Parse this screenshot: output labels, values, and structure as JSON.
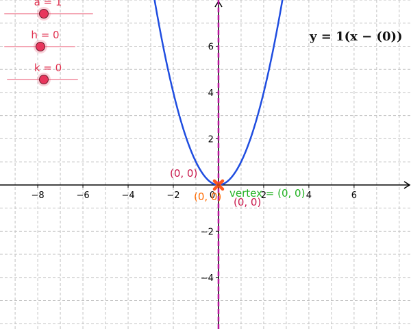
{
  "sliders": [
    {
      "label": "a = 1",
      "value": 1
    },
    {
      "label": "h = 0",
      "value": 0
    },
    {
      "label": "k = 0",
      "value": 0
    }
  ],
  "equation": "y = 1(x − (0))",
  "axes": {
    "xlim": [
      -9.67,
      8.52
    ],
    "ylim": [
      -6.23,
      8.0
    ],
    "x_ticks": [
      -8,
      -6,
      -4,
      -2,
      0,
      2,
      4,
      6
    ],
    "x_tick_labels": [
      "−8",
      "−6",
      "−4",
      "−2",
      "0",
      "2",
      "4",
      "6"
    ],
    "y_ticks": [
      -4,
      -2,
      2,
      4,
      6
    ],
    "y_tick_labels": [
      "−4",
      "−2",
      "2",
      "4",
      "6"
    ],
    "grid": true
  },
  "curve": {
    "a": 1,
    "h": 0,
    "k": 0,
    "color": "#1f4de0"
  },
  "axis_of_symmetry": {
    "x": 0,
    "color": "#b5129a"
  },
  "vertex_point": {
    "x": 0,
    "y": 0,
    "color": "#ff5a1f"
  },
  "labels": {
    "crimson_upper": "(0, 0)",
    "orange": "(0, 0)",
    "crimson_lower": "(0, 0)",
    "vertex": "vertex = (0, 0)"
  },
  "colors": {
    "slider": "#e8355c",
    "crimson": "#c8174b",
    "orange": "#ff6a00",
    "green": "#22b222",
    "grid": "#c2c2c2"
  }
}
